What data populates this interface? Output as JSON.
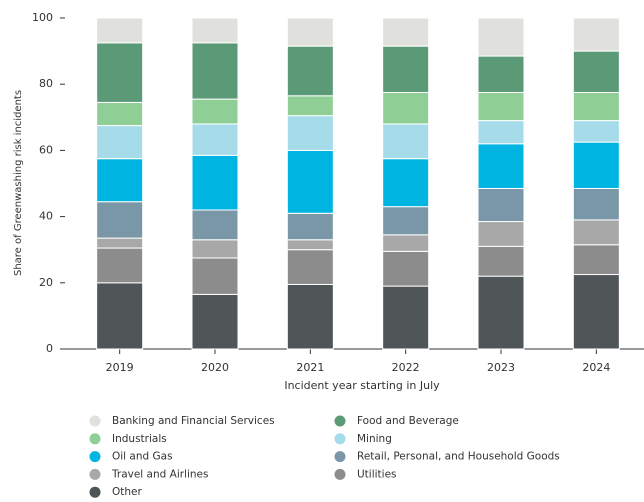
{
  "chart_data": {
    "type": "stacked_bar",
    "categories": [
      "2019",
      "2020",
      "2021",
      "2022",
      "2023",
      "2024"
    ],
    "xlabel": "Incident year starting in July",
    "ylabel": "Share of Greenwashing risk incidents",
    "ylim": [
      0,
      100
    ],
    "yticks": [
      0,
      20,
      40,
      60,
      80,
      100
    ],
    "grid": false,
    "series": [
      {
        "name": "Banking and Financial Services",
        "color": "#e0e0dc",
        "values": [
          7.5,
          7.5,
          8.5,
          8.5,
          11.5,
          10
        ]
      },
      {
        "name": "Food and Beverage",
        "color": "#5a9a77",
        "values": [
          18,
          17,
          15,
          14,
          11,
          12.5
        ]
      },
      {
        "name": "Industrials",
        "color": "#8fcf96",
        "values": [
          7,
          7.5,
          6,
          9.5,
          8.5,
          8.5
        ]
      },
      {
        "name": "Mining",
        "color": "#a6dcea",
        "values": [
          10,
          9.5,
          10.5,
          10.5,
          7,
          6.5
        ]
      },
      {
        "name": "Oil and Gas",
        "color": "#00b5e2",
        "values": [
          13,
          16.5,
          19,
          14.5,
          13.5,
          14
        ]
      },
      {
        "name": "Retail, Personal, and Household Goods",
        "color": "#7a97a8",
        "values": [
          11,
          9,
          8,
          8.5,
          10,
          9.5
        ]
      },
      {
        "name": "Travel and Airlines",
        "color": "#a8a8a8",
        "values": [
          3,
          5.5,
          3,
          5,
          7.5,
          7.5
        ]
      },
      {
        "name": "Utilities",
        "color": "#8c8c8c",
        "values": [
          10.5,
          11,
          10.5,
          10.5,
          9,
          9
        ]
      },
      {
        "name": "Other",
        "color": "#505558",
        "values": [
          20,
          16.5,
          19.5,
          19,
          22,
          22.5
        ]
      }
    ]
  }
}
